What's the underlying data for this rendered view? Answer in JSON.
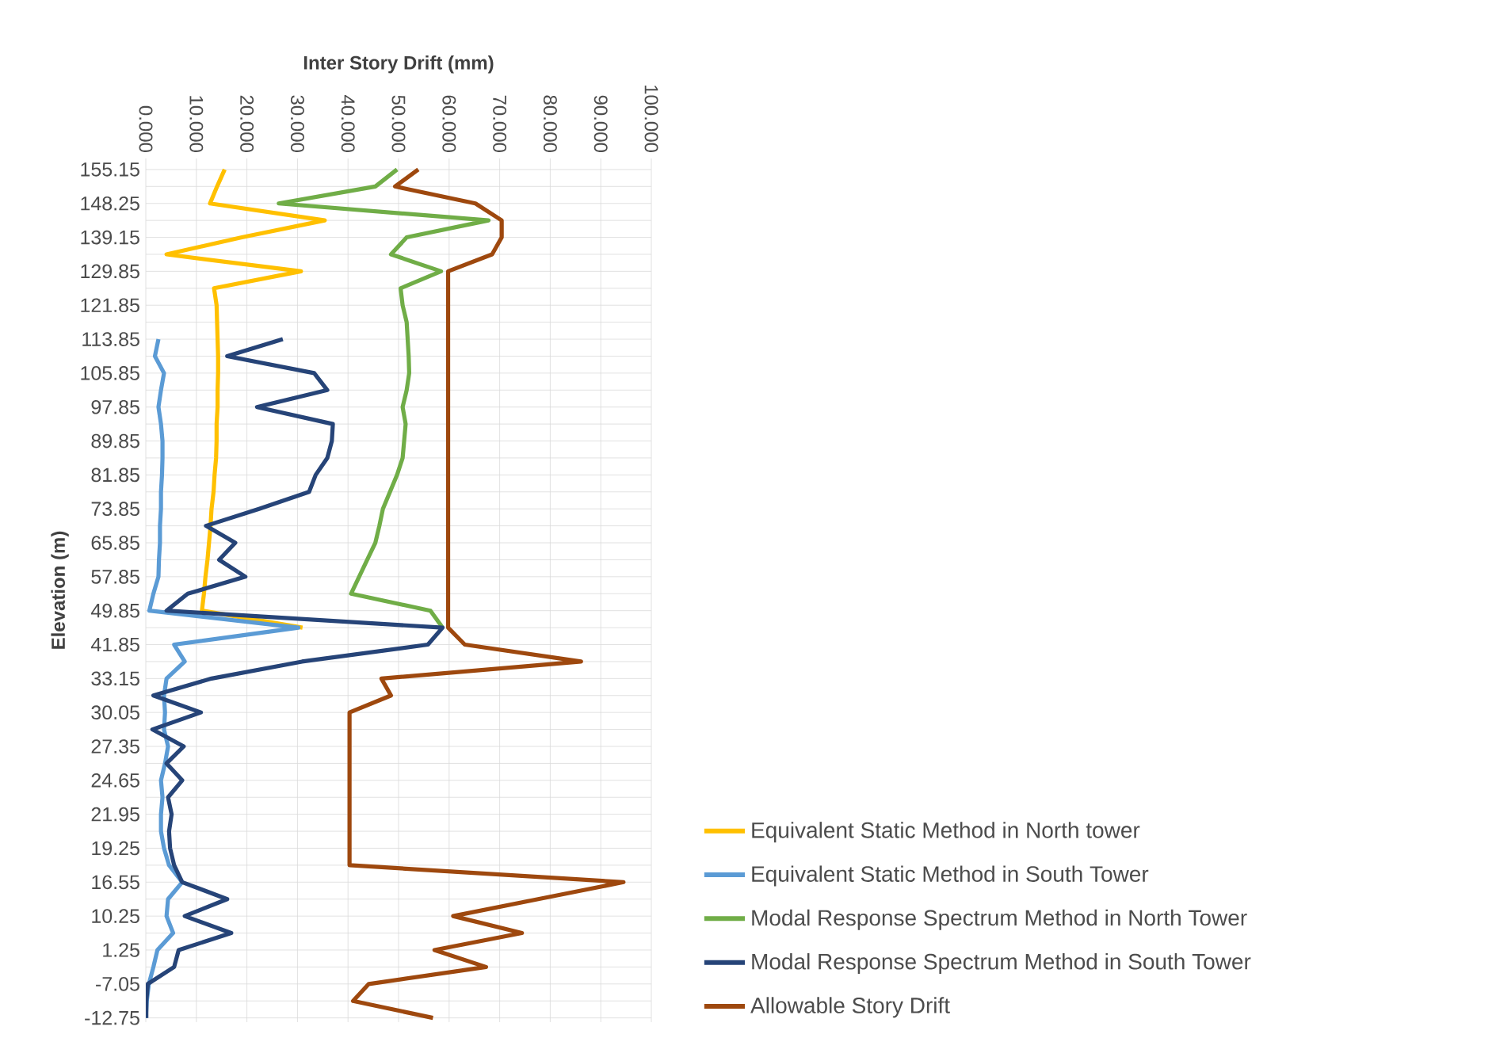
{
  "chart_data": {
    "type": "line",
    "orientation": "horizontal",
    "xlabel": "Inter Story Drift (mm)",
    "ylabel": "Elevation (m)",
    "categories": [
      "155.15",
      null,
      "148.25",
      null,
      "139.15",
      null,
      "129.85",
      null,
      "121.85",
      null,
      "113.85",
      null,
      "105.85",
      null,
      "97.85",
      null,
      "89.85",
      null,
      "81.85",
      null,
      "73.85",
      null,
      "65.85",
      null,
      "57.85",
      null,
      "49.85",
      null,
      "41.85",
      null,
      "33.15",
      null,
      "30.05",
      null,
      "27.35",
      null,
      "24.65",
      null,
      "21.95",
      null,
      "19.25",
      null,
      "16.55",
      null,
      "10.25",
      null,
      "1.25",
      null,
      "-7.05",
      null,
      "-12.75"
    ],
    "xlim": [
      0,
      100
    ],
    "xticks": [
      {
        "value": 0,
        "label": "0.000"
      },
      {
        "value": 10,
        "label": "10.000"
      },
      {
        "value": 20,
        "label": "20.000"
      },
      {
        "value": 30,
        "label": "30.000"
      },
      {
        "value": 40,
        "label": "40.000"
      },
      {
        "value": 50,
        "label": "50.000"
      },
      {
        "value": 60,
        "label": "60.000"
      },
      {
        "value": 70,
        "label": "70.000"
      },
      {
        "value": 80,
        "label": "80.000"
      },
      {
        "value": 90,
        "label": "90.000"
      },
      {
        "value": 100,
        "label": "100.000"
      }
    ],
    "grid": true,
    "legend": "bottom right",
    "line_style": "solid",
    "marker": "none",
    "series": [
      {
        "name": "Equivalent Static Method in North tower",
        "color": "#ffc000",
        "values": [
          15.6,
          14.1,
          12.7,
          35.4,
          19.0,
          4.1,
          30.7,
          13.5,
          14.0,
          14.1,
          14.2,
          14.3,
          14.3,
          14.2,
          14.2,
          14.0,
          14.0,
          13.9,
          13.6,
          13.4,
          13.0,
          12.8,
          12.5,
          12.2,
          11.8,
          11.5,
          11.1,
          31.0,
          null,
          null,
          null,
          null,
          null,
          null,
          null,
          null,
          null,
          null,
          null,
          null,
          null,
          null,
          null,
          null,
          null,
          null,
          null,
          null,
          null,
          null,
          null
        ]
      },
      {
        "name": "Equivalent Static Method in South Tower",
        "color": "#5b9bd5",
        "values": [
          null,
          null,
          null,
          null,
          null,
          null,
          null,
          null,
          null,
          null,
          2.5,
          1.8,
          3.6,
          3.0,
          2.5,
          3.0,
          3.3,
          3.3,
          3.2,
          3.0,
          3.0,
          2.8,
          2.8,
          2.6,
          2.5,
          1.5,
          0.7,
          30.2,
          5.6,
          7.7,
          4.1,
          3.6,
          3.8,
          3.6,
          4.4,
          3.8,
          3.0,
          3.3,
          3.0,
          3.0,
          3.6,
          4.6,
          7.2,
          4.4,
          4.1,
          5.4,
          2.3,
          1.5,
          0.6,
          0.2,
          0.0
        ]
      },
      {
        "name": "Modal Response Spectrum Method in North Tower",
        "color": "#70ad47",
        "values": [
          49.7,
          45.4,
          26.3,
          67.8,
          51.6,
          48.5,
          58.4,
          50.4,
          50.8,
          51.6,
          51.8,
          52.0,
          52.1,
          51.6,
          50.8,
          51.4,
          51.1,
          50.8,
          49.7,
          48.3,
          46.9,
          46.2,
          45.4,
          43.8,
          42.2,
          40.6,
          56.3,
          58.7,
          null,
          null,
          null,
          null,
          null,
          null,
          null,
          null,
          null,
          null,
          null,
          null,
          null,
          null,
          null,
          null,
          null,
          null,
          null,
          null,
          null,
          null,
          null
        ]
      },
      {
        "name": "Modal Response Spectrum Method in South Tower",
        "color": "#264478",
        "values": [
          null,
          null,
          null,
          null,
          null,
          null,
          null,
          null,
          null,
          null,
          27.1,
          16.1,
          33.3,
          35.9,
          22.0,
          37.0,
          36.8,
          35.9,
          33.6,
          32.3,
          22.4,
          11.9,
          17.7,
          14.5,
          19.7,
          8.3,
          4.1,
          58.7,
          55.8,
          30.9,
          13.0,
          1.5,
          10.9,
          1.3,
          7.5,
          4.1,
          7.2,
          4.4,
          5.1,
          4.6,
          4.8,
          5.6,
          7.2,
          16.1,
          7.7,
          16.9,
          6.5,
          5.6,
          0.4,
          0.1,
          0.1
        ]
      },
      {
        "name": "Allowable Story Drift",
        "color": "#9e480e",
        "values": [
          53.9,
          49.3,
          65.2,
          70.4,
          70.4,
          68.5,
          59.8,
          59.8,
          59.8,
          59.8,
          59.8,
          59.8,
          59.8,
          59.8,
          59.8,
          59.8,
          59.8,
          59.8,
          59.8,
          59.8,
          59.8,
          59.8,
          59.8,
          59.8,
          59.8,
          59.8,
          59.8,
          59.8,
          63.1,
          86.1,
          46.6,
          48.5,
          40.3,
          40.3,
          40.3,
          40.3,
          40.3,
          40.3,
          40.3,
          40.3,
          40.3,
          40.3,
          94.5,
          77.6,
          60.8,
          74.4,
          57.1,
          67.3,
          44.1,
          41.0,
          56.8
        ]
      }
    ]
  }
}
